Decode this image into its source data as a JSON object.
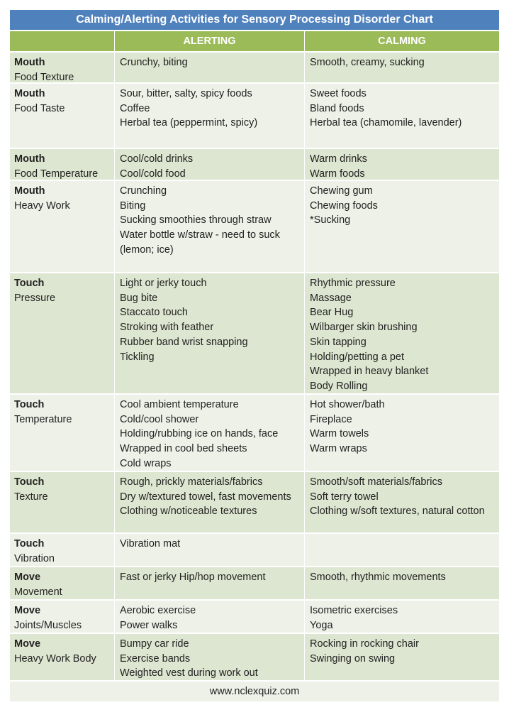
{
  "title": "Calming/Alerting Activities for Sensory Processing Disorder Chart",
  "columns": [
    "",
    "ALERTING",
    "CALMING"
  ],
  "colors": {
    "title_bg": "#4f81bd",
    "header_bg": "#9bbb59",
    "row_dark": "#dde6d0",
    "row_light": "#eef1e8"
  },
  "rows": [
    {
      "category": "Mouth",
      "sub": "Food Texture",
      "alerting": [
        "Crunchy, biting"
      ],
      "calming": [
        "Smooth, creamy, sucking"
      ]
    },
    {
      "category": "Mouth",
      "sub": "Food Taste",
      "alerting": [
        "Sour, bitter, salty, spicy foods",
        "Coffee",
        "Herbal tea (peppermint, spicy)"
      ],
      "calming": [
        "Sweet foods",
        "Bland foods",
        "Herbal tea (chamomile, lavender)"
      ]
    },
    {
      "category": "Mouth",
      "sub": "Food  Temperature",
      "alerting": [
        "Cool/cold drinks",
        "Cool/cold food"
      ],
      "calming": [
        "Warm drinks",
        "Warm foods"
      ]
    },
    {
      "category": "Mouth",
      "sub": "Heavy Work",
      "alerting": [
        "Crunching",
        "Biting",
        "Sucking smoothies through straw",
        "Water bottle w/straw - need to suck (lemon; ice)"
      ],
      "calming": [
        "Chewing gum",
        "Chewing foods",
        "*Sucking"
      ]
    },
    {
      "category": "Touch",
      "sub": "Pressure",
      "alerting": [
        "Light or jerky touch",
        "Bug bite",
        "Staccato touch",
        "Stroking with feather",
        "Rubber band wrist snapping",
        "Tickling"
      ],
      "calming": [
        "Rhythmic pressure",
        "Massage",
        "Bear Hug",
        "Wilbarger skin brushing",
        "Skin tapping",
        "Holding/petting a pet",
        "Wrapped in heavy blanket",
        "Body Rolling"
      ]
    },
    {
      "category": "Touch",
      "sub": "Temperature",
      "alerting": [
        "Cool ambient temperature",
        "Cold/cool shower",
        "Holding/rubbing ice on hands, face",
        "Wrapped in cool bed sheets",
        "Cold wraps"
      ],
      "calming": [
        "Hot shower/bath",
        "Fireplace",
        "Warm towels",
        "Warm wraps"
      ]
    },
    {
      "category": "Touch",
      "sub": "Texture",
      "alerting": [
        "Rough, prickly materials/fabrics",
        "Dry w/textured towel, fast movements",
        "Clothing w/noticeable textures"
      ],
      "calming": [
        "Smooth/soft materials/fabrics",
        "Soft terry towel",
        "Clothing w/soft textures, natural cotton"
      ]
    },
    {
      "category": "Touch",
      "sub": "Vibration",
      "alerting": [
        "Vibration mat"
      ],
      "calming": []
    },
    {
      "category": "Move",
      "sub": "Movement",
      "alerting": [
        "Fast or jerky Hip/hop movement"
      ],
      "calming": [
        "Smooth, rhythmic movements"
      ]
    },
    {
      "category": "Move",
      "sub": "Joints/Muscles",
      "alerting": [
        "Aerobic exercise",
        "Power walks"
      ],
      "calming": [
        "Isometric exercises",
        "Yoga"
      ]
    },
    {
      "category": "Move",
      "sub": "Heavy Work Body",
      "alerting": [
        "Bumpy car ride",
        "Exercise bands",
        "Weighted vest during work out"
      ],
      "calming": [
        "Rocking in rocking chair",
        "Swinging on swing"
      ]
    }
  ],
  "footer": "www.nclexquiz.com"
}
